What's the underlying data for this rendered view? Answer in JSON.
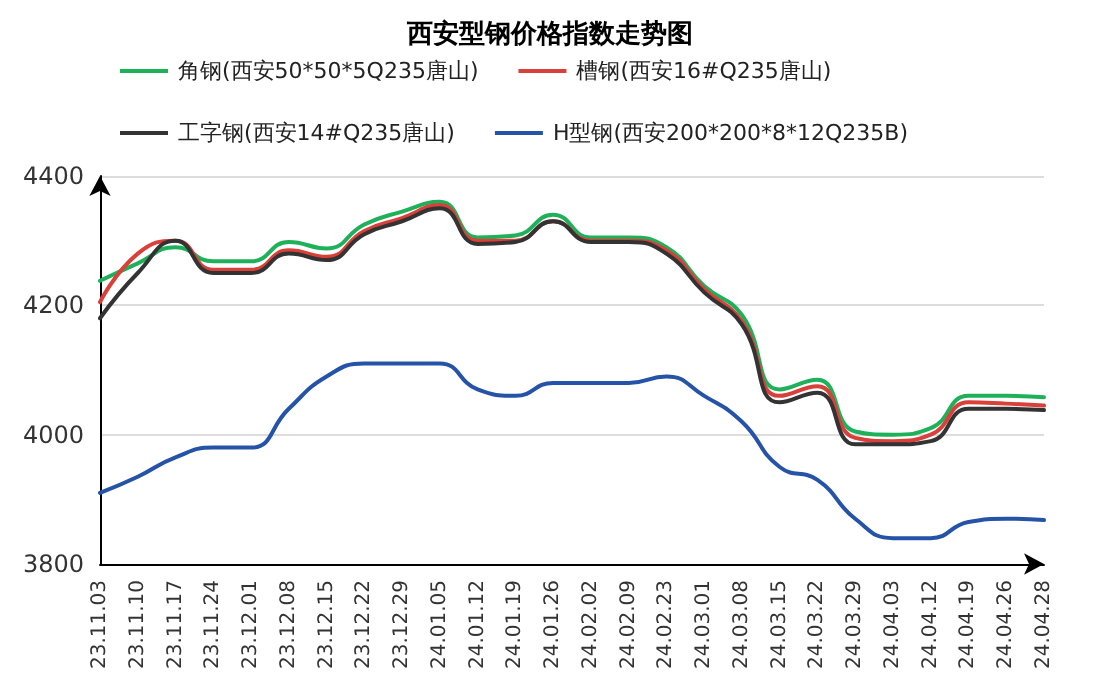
{
  "chart_data": {
    "type": "line",
    "title": "西安型钢价格指数走势图",
    "categories": [
      "23.11.03",
      "23.11.10",
      "23.11.17",
      "23.11.24",
      "23.12.01",
      "23.12.08",
      "23.12.15",
      "23.12.22",
      "23.12.29",
      "24.01.05",
      "24.01.12",
      "24.01.19",
      "24.01.26",
      "24.02.02",
      "24.02.09",
      "24.02.23",
      "24.03.01",
      "24.03.08",
      "24.03.15",
      "24.03.22",
      "24.03.29",
      "24.04.03",
      "24.04.12",
      "24.04.19",
      "24.04.26",
      "24.04.28"
    ],
    "series": [
      {
        "name": "角钢(西安50*50*5Q235唐山)",
        "color": "#1fb15a",
        "values": [
          4238,
          4265,
          4290,
          4268,
          4268,
          4298,
          4288,
          4325,
          4345,
          4360,
          4305,
          4308,
          4340,
          4305,
          4305,
          4290,
          4230,
          4185,
          4070,
          4085,
          4005,
          4000,
          4010,
          4060,
          4060,
          4058
        ]
      },
      {
        "name": "槽钢(西安16#Q235唐山)",
        "color": "#d9403a",
        "values": [
          4205,
          4280,
          4300,
          4255,
          4255,
          4285,
          4275,
          4315,
          4335,
          4355,
          4300,
          4300,
          4330,
          4300,
          4300,
          4285,
          4225,
          4175,
          4060,
          4075,
          3995,
          3990,
          4000,
          4050,
          4048,
          4045
        ]
      },
      {
        "name": "工字钢(西安14#Q235唐山)",
        "color": "#333333",
        "values": [
          4180,
          4250,
          4300,
          4250,
          4250,
          4280,
          4270,
          4310,
          4330,
          4350,
          4295,
          4298,
          4330,
          4298,
          4298,
          4280,
          4220,
          4170,
          4050,
          4065,
          3985,
          3985,
          3990,
          4040,
          4040,
          4038
        ]
      },
      {
        "name": "H型钢(西安200*200*8*12Q235B)",
        "color": "#2553a8",
        "values": [
          3910,
          3935,
          3965,
          3980,
          3980,
          4040,
          4090,
          4110,
          4110,
          4110,
          4070,
          4060,
          4080,
          4080,
          4080,
          4090,
          4060,
          4020,
          3950,
          3930,
          3870,
          3840,
          3840,
          3865,
          3870,
          3868
        ]
      }
    ],
    "ylim": [
      3800,
      4400
    ],
    "yticks": [
      3800,
      4000,
      4200,
      4400
    ],
    "grid": "y",
    "legend": "top",
    "marker": "none",
    "line_style": "solid"
  }
}
